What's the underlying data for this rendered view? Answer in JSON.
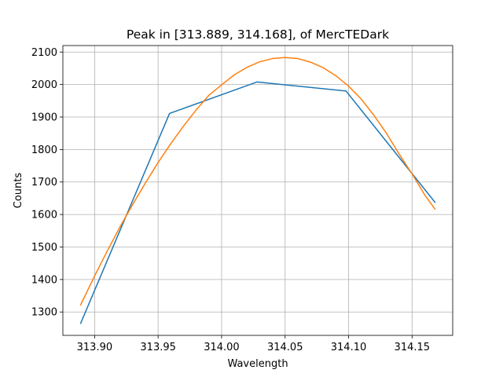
{
  "chart_data": {
    "type": "line",
    "title": "Peak in [313.889, 314.168], of MercTEDark",
    "xlabel": "Wavelength",
    "ylabel": "Counts",
    "xlim": [
      313.875,
      314.182
    ],
    "ylim": [
      1228,
      2120
    ],
    "grid": true,
    "x_ticks": [
      313.9,
      313.95,
      314.0,
      314.05,
      314.1,
      314.15
    ],
    "x_tick_labels": [
      "313.90",
      "313.95",
      "314.00",
      "314.05",
      "314.10",
      "314.15"
    ],
    "y_ticks": [
      1300,
      1400,
      1500,
      1600,
      1700,
      1800,
      1900,
      2000,
      2100
    ],
    "y_tick_labels": [
      "1300",
      "1400",
      "1500",
      "1600",
      "1700",
      "1800",
      "1900",
      "2000",
      "2100"
    ],
    "series": [
      {
        "color": "#1f77b4",
        "kind": "data",
        "x": [
          313.889,
          313.959,
          314.028,
          314.098,
          314.168
        ],
        "y": [
          1265,
          1911,
          2008,
          1980,
          1638
        ]
      },
      {
        "color": "#ff7f0e",
        "kind": "fit",
        "x": [
          313.889,
          313.9,
          313.91,
          313.92,
          313.93,
          313.94,
          313.95,
          313.96,
          313.97,
          313.98,
          313.99,
          314.0,
          314.01,
          314.02,
          314.03,
          314.04,
          314.05,
          314.06,
          314.07,
          314.08,
          314.09,
          314.1,
          314.11,
          314.12,
          314.13,
          314.14,
          314.15,
          314.16,
          314.168
        ],
        "y": [
          1322,
          1411,
          1488,
          1562,
          1631,
          1697,
          1760,
          1818,
          1872,
          1922,
          1967,
          1999,
          2030,
          2053,
          2070,
          2080,
          2083,
          2080,
          2069,
          2052,
          2027,
          1995,
          1955,
          1905,
          1849,
          1785,
          1725,
          1660,
          1617
        ]
      }
    ]
  }
}
